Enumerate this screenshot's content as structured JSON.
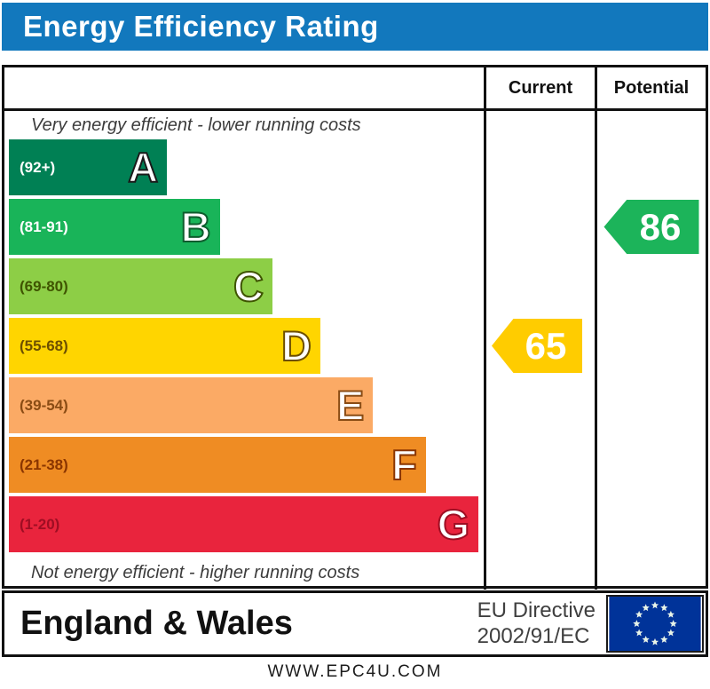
{
  "title": "Energy Efficiency Rating",
  "title_bar_color": "#1278bd",
  "columns": {
    "current": "Current",
    "potential": "Potential"
  },
  "top_caption": "Very energy efficient - lower running costs",
  "bottom_caption": "Not energy efficient - higher running costs",
  "bands": [
    {
      "letter": "A",
      "range": "(92+)",
      "color": "#008054",
      "range_color": "#ffffff",
      "outline": "#1a1a1a",
      "width_pct": 33
    },
    {
      "letter": "B",
      "range": "(81-91)",
      "color": "#19b459",
      "range_color": "#ffffff",
      "outline": "#0e5c2d",
      "width_pct": 44
    },
    {
      "letter": "C",
      "range": "(69-80)",
      "color": "#8dce46",
      "range_color": "#3f5400",
      "outline": "#3f5400",
      "width_pct": 55
    },
    {
      "letter": "D",
      "range": "(55-68)",
      "color": "#ffd500",
      "range_color": "#6d4f00",
      "outline": "#6d4f00",
      "width_pct": 65
    },
    {
      "letter": "E",
      "range": "(39-54)",
      "color": "#fbaa65",
      "range_color": "#8a4c14",
      "outline": "#8a4c14",
      "width_pct": 76
    },
    {
      "letter": "F",
      "range": "(21-38)",
      "color": "#ef8c23",
      "range_color": "#8a3500",
      "outline": "#8a3500",
      "width_pct": 87
    },
    {
      "letter": "G",
      "range": "(1-20)",
      "color": "#e9243d",
      "range_color": "#9e0e23",
      "outline": "#9e0e23",
      "width_pct": 98
    }
  ],
  "current": {
    "value": "65",
    "color": "#ffcc00",
    "band_index": 3
  },
  "potential": {
    "value": "86",
    "color": "#1cb45a",
    "band_index": 1
  },
  "footer": {
    "region": "England & Wales",
    "directive_line1": "EU Directive",
    "directive_line2": "2002/91/EC",
    "flag_blue": "#003399",
    "star_color": "#e8f4e8"
  },
  "website": "WWW.EPC4U.COM",
  "chart_data": {
    "type": "bar",
    "title": "Energy Efficiency Rating",
    "categories": [
      "A (92+)",
      "B (81-91)",
      "C (69-80)",
      "D (55-68)",
      "E (39-54)",
      "F (21-38)",
      "G (1-20)"
    ],
    "band_colors": [
      "#008054",
      "#19b459",
      "#8dce46",
      "#ffd500",
      "#fbaa65",
      "#ef8c23",
      "#e9243d"
    ],
    "series": [
      {
        "name": "Current",
        "value": 65,
        "band": "D"
      },
      {
        "name": "Potential",
        "value": 86,
        "band": "B"
      }
    ],
    "scale": [
      1,
      100
    ],
    "annotations": [
      "Very energy efficient - lower running costs",
      "Not energy efficient - higher running costs"
    ],
    "footer": "England & Wales | EU Directive 2002/91/EC | WWW.EPC4U.COM"
  }
}
